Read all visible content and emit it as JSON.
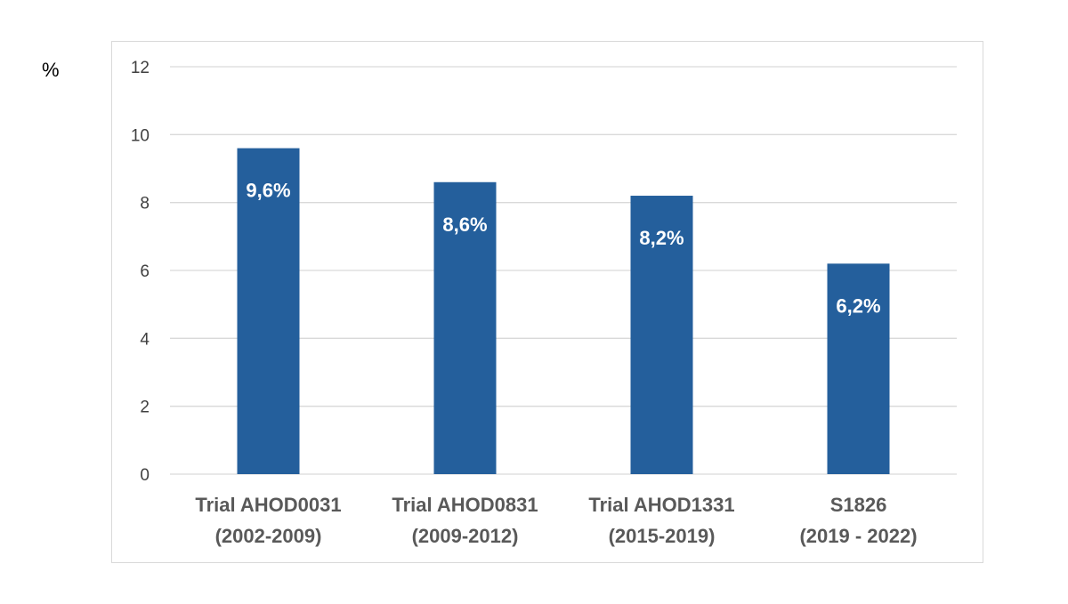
{
  "y_unit": "%",
  "colors": {
    "bar": "#245f9c",
    "grid": "#d9d9d9"
  },
  "chart_data": {
    "type": "bar",
    "categories": [
      [
        "Trial AHOD0031",
        "(2002-2009)"
      ],
      [
        "Trial AHOD0831",
        "(2009-2012)"
      ],
      [
        "Trial AHOD1331",
        "(2015-2019)"
      ],
      [
        "S1826",
        "(2019 - 2022)"
      ]
    ],
    "values": [
      9.6,
      8.6,
      8.2,
      6.2
    ],
    "data_labels": [
      "9,6%",
      "8,6%",
      "8,2%",
      "6,2%"
    ],
    "ylim": [
      0,
      12
    ],
    "yticks": [
      0,
      2,
      4,
      6,
      8,
      10,
      12
    ],
    "grid": true,
    "legend": "none"
  }
}
